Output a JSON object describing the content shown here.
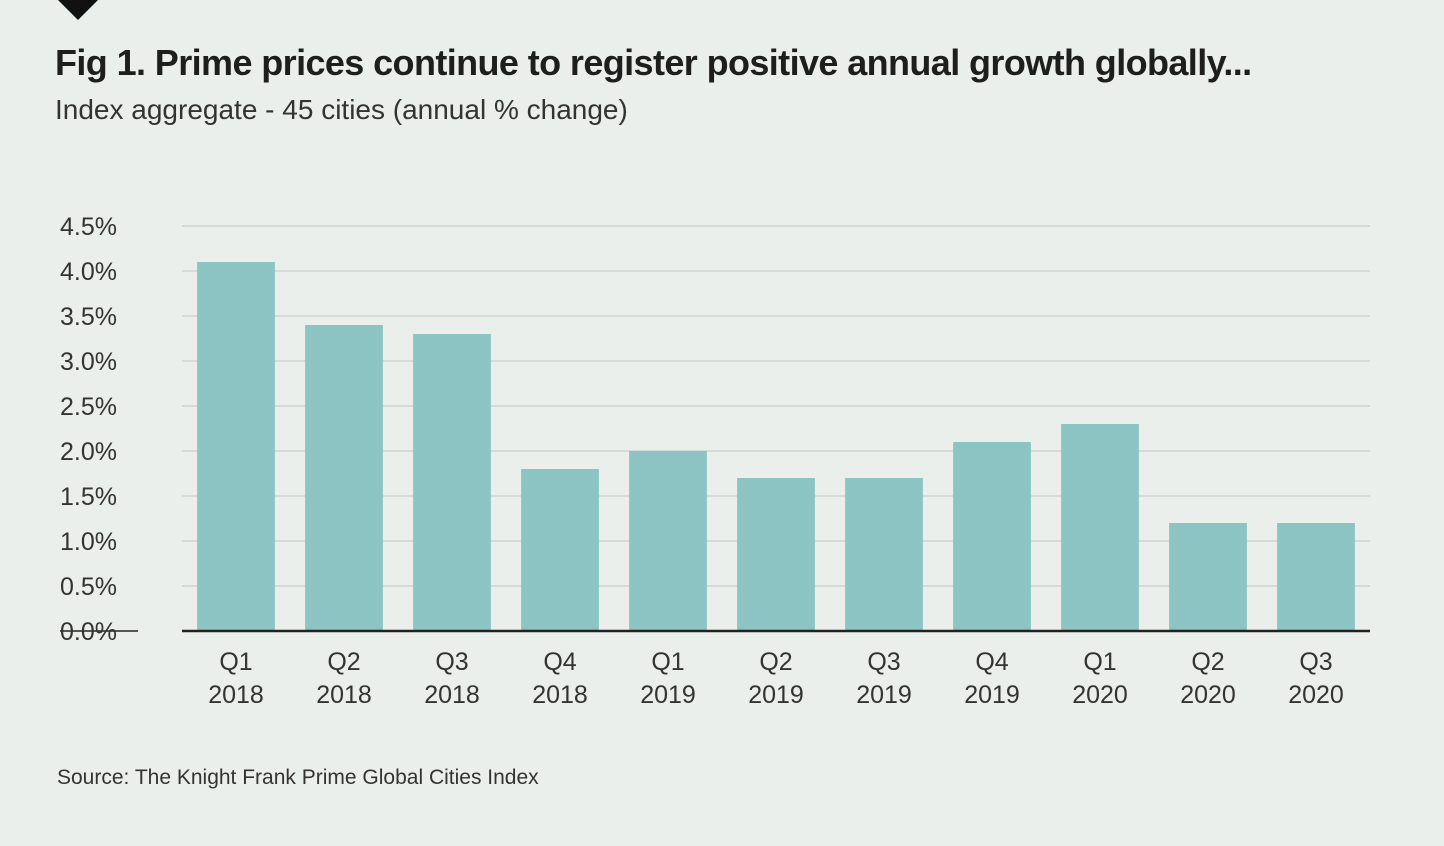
{
  "header": {
    "title": "Fig 1. Prime prices continue to register positive annual growth globally...",
    "subtitle": "Index aggregate - 45 cities  (annual % change)"
  },
  "footer": {
    "source": "Source: The Knight Frank Prime Global Cities Index"
  },
  "colors": {
    "bar": "#8bc4c2",
    "grid": "#cfd4d1",
    "axis": "#222222",
    "background": "#ebefec"
  },
  "chart_data": {
    "type": "bar",
    "title": "Fig 1. Prime prices continue to register positive annual growth globally...",
    "subtitle": "Index aggregate - 45 cities  (annual % change)",
    "xlabel": "",
    "ylabel": "",
    "categories": [
      [
        "Q1",
        "2018"
      ],
      [
        "Q2",
        "2018"
      ],
      [
        "Q3",
        "2018"
      ],
      [
        "Q4",
        "2018"
      ],
      [
        "Q1",
        "2019"
      ],
      [
        "Q2",
        "2019"
      ],
      [
        "Q3",
        "2019"
      ],
      [
        "Q4",
        "2019"
      ],
      [
        "Q1",
        "2020"
      ],
      [
        "Q2",
        "2020"
      ],
      [
        "Q3",
        "2020"
      ]
    ],
    "values": [
      4.1,
      3.4,
      3.3,
      1.8,
      2.0,
      1.7,
      1.7,
      2.1,
      2.3,
      1.2,
      1.2
    ],
    "ylim": [
      0,
      4.5
    ],
    "yticks": [
      0.0,
      0.5,
      1.0,
      1.5,
      2.0,
      2.5,
      3.0,
      3.5,
      4.0,
      4.5
    ],
    "ytick_labels": [
      "0.0%",
      "0.5%",
      "1.0%",
      "1.5%",
      "2.0%",
      "2.5%",
      "3.0%",
      "3.5%",
      "4.0%",
      "4.5%"
    ],
    "grid": true,
    "legend": "none"
  }
}
